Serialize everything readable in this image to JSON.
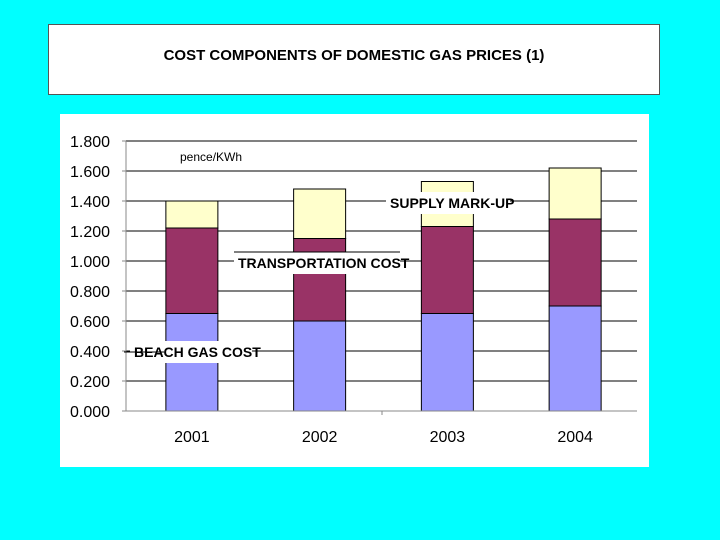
{
  "header": {
    "title": "COST COMPONENTS OF DOMESTIC GAS PRICES (1)"
  },
  "chart_data": {
    "type": "bar",
    "stacked": true,
    "title": "COST COMPONENTS OF DOMESTIC GAS PRICES (1)",
    "unit_label": "pence/KWh",
    "xlabel": "",
    "ylabel": "pence/KWh",
    "ylim": [
      0,
      1.8
    ],
    "ytick_step": 0.2,
    "ytick_decimals": 3,
    "grid": true,
    "categories": [
      "2001",
      "2002",
      "2003",
      "2004"
    ],
    "series": [
      {
        "name": "BEACH GAS COST",
        "color": "#9999FF",
        "values": [
          0.65,
          0.6,
          0.65,
          0.7
        ]
      },
      {
        "name": "TRANSPORTATION COST",
        "color": "#993366",
        "values": [
          0.57,
          0.55,
          0.58,
          0.58
        ]
      },
      {
        "name": "SUPPLY MARK-UP",
        "color": "#FFFFCC",
        "values": [
          0.18,
          0.33,
          0.3,
          0.34
        ]
      }
    ],
    "annotations": [
      {
        "text": "SUPPLY MARK-UP",
        "series": "SUPPLY MARK-UP"
      },
      {
        "text": "TRANSPORTATION COST",
        "series": "TRANSPORTATION COST"
      },
      {
        "text": "BEACH GAS COST",
        "series": "BEACH GAS COST"
      }
    ]
  }
}
